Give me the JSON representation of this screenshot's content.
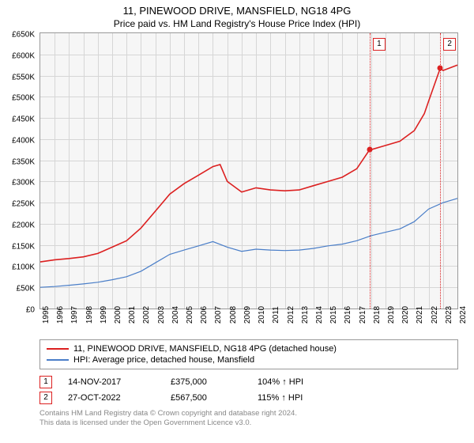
{
  "title": "11, PINEWOOD DRIVE, MANSFIELD, NG18 4PG",
  "subtitle": "Price paid vs. HM Land Registry's House Price Index (HPI)",
  "chart": {
    "type": "line",
    "background_color": "#f6f6f6",
    "grid_color": "#d6d6d6",
    "border_color": "#999999",
    "ylim": [
      0,
      650
    ],
    "ytick_step": 50,
    "ytick_labels": [
      "£0",
      "£50K",
      "£100K",
      "£150K",
      "£200K",
      "£250K",
      "£300K",
      "£350K",
      "£400K",
      "£450K",
      "£500K",
      "£550K",
      "£600K",
      "£650K"
    ],
    "xlim": [
      1995,
      2024
    ],
    "xticks": [
      1995,
      1996,
      1997,
      1998,
      1999,
      2000,
      2001,
      2002,
      2003,
      2004,
      2005,
      2006,
      2007,
      2008,
      2009,
      2010,
      2011,
      2012,
      2013,
      2014,
      2015,
      2016,
      2017,
      2018,
      2019,
      2020,
      2021,
      2022,
      2023,
      2024
    ],
    "series": [
      {
        "name": "price_paid",
        "label": "11, PINEWOOD DRIVE, MANSFIELD, NG18 4PG (detached house)",
        "color": "#dc2020",
        "line_width": 1.6,
        "x": [
          1995,
          1996,
          1997,
          1998,
          1999,
          2000,
          2001,
          2002,
          2003,
          2004,
          2005,
          2006,
          2007,
          2007.5,
          2008,
          2009,
          2010,
          2011,
          2012,
          2013,
          2014,
          2015,
          2016,
          2017,
          2017.9,
          2018,
          2019,
          2020,
          2021,
          2021.7,
          2022,
          2022.8,
          2023,
          2024
        ],
        "y": [
          110,
          115,
          118,
          122,
          130,
          145,
          160,
          190,
          230,
          270,
          295,
          315,
          335,
          340,
          300,
          275,
          285,
          280,
          278,
          280,
          290,
          300,
          310,
          330,
          375,
          375,
          385,
          395,
          420,
          460,
          490,
          567,
          562,
          575
        ]
      },
      {
        "name": "hpi",
        "label": "HPI: Average price, detached house, Mansfield",
        "color": "#4a7ec8",
        "line_width": 1.2,
        "x": [
          1995,
          1996,
          1997,
          1998,
          1999,
          2000,
          2001,
          2002,
          2003,
          2004,
          2005,
          2006,
          2007,
          2008,
          2009,
          2010,
          2011,
          2012,
          2013,
          2014,
          2015,
          2016,
          2017,
          2018,
          2019,
          2020,
          2021,
          2022,
          2023,
          2024
        ],
        "y": [
          50,
          52,
          55,
          58,
          62,
          68,
          75,
          88,
          108,
          128,
          138,
          148,
          158,
          145,
          135,
          140,
          138,
          137,
          138,
          142,
          148,
          152,
          160,
          172,
          180,
          188,
          205,
          235,
          250,
          260
        ]
      }
    ],
    "markers": [
      {
        "num": "1",
        "x": 2017.9,
        "y": 375
      },
      {
        "num": "2",
        "x": 2022.8,
        "y": 567
      }
    ],
    "marker_color": "#dc2020"
  },
  "legend": {
    "items": [
      {
        "color": "#dc2020",
        "label": "11, PINEWOOD DRIVE, MANSFIELD, NG18 4PG (detached house)"
      },
      {
        "color": "#4a7ec8",
        "label": "HPI: Average price, detached house, Mansfield"
      }
    ]
  },
  "transactions": [
    {
      "num": "1",
      "date": "14-NOV-2017",
      "price": "£375,000",
      "hpi": "104% ↑ HPI"
    },
    {
      "num": "2",
      "date": "27-OCT-2022",
      "price": "£567,500",
      "hpi": "115% ↑ HPI"
    }
  ],
  "footer": {
    "line1": "Contains HM Land Registry data © Crown copyright and database right 2024.",
    "line2": "This data is licensed under the Open Government Licence v3.0."
  },
  "fonts": {
    "title_size": 13,
    "subtitle_size": 12,
    "axis_label_size": 10,
    "legend_size": 11,
    "footer_size": 9.5
  }
}
